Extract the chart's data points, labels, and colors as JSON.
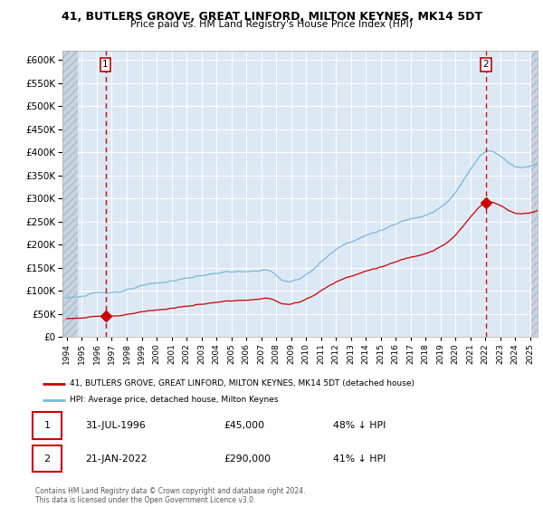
{
  "title": "41, BUTLERS GROVE, GREAT LINFORD, MILTON KEYNES, MK14 5DT",
  "subtitle": "Price paid vs. HM Land Registry's House Price Index (HPI)",
  "hpi_label": "HPI: Average price, detached house, Milton Keynes",
  "prop_label": "41, BUTLERS GROVE, GREAT LINFORD, MILTON KEYNES, MK14 5DT (detached house)",
  "sale1_date": "31-JUL-1996",
  "sale1_price": 45000,
  "sale1_pct": "48% ↓ HPI",
  "sale2_date": "21-JAN-2022",
  "sale2_price": 290000,
  "sale2_pct": "41% ↓ HPI",
  "sale1_year": 1996.58,
  "sale2_year": 2022.05,
  "hpi_color": "#7ab8d9",
  "prop_color": "#cc0000",
  "marker_color": "#cc0000",
  "bg_color": "#dce9f5",
  "hatch_bg_color": "#c8d4e4",
  "ylim": [
    0,
    620000
  ],
  "xlim_start": 1993.7,
  "xlim_end": 2025.5,
  "footer": "Contains HM Land Registry data © Crown copyright and database right 2024.\nThis data is licensed under the Open Government Licence v3.0."
}
